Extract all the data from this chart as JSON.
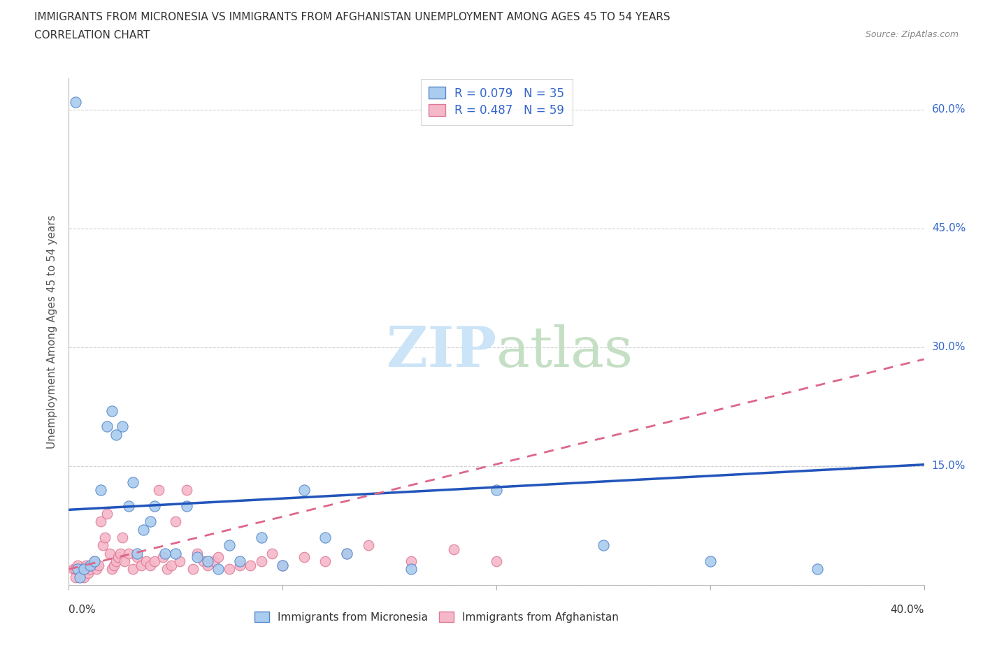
{
  "title_line1": "IMMIGRANTS FROM MICRONESIA VS IMMIGRANTS FROM AFGHANISTAN UNEMPLOYMENT AMONG AGES 45 TO 54 YEARS",
  "title_line2": "CORRELATION CHART",
  "source_text": "Source: ZipAtlas.com",
  "ylabel": "Unemployment Among Ages 45 to 54 years",
  "xlim": [
    0.0,
    0.4
  ],
  "ylim": [
    0.0,
    0.64
  ],
  "yticks": [
    0.0,
    0.15,
    0.3,
    0.45,
    0.6
  ],
  "ytick_labels": [
    "",
    "15.0%",
    "30.0%",
    "45.0%",
    "60.0%"
  ],
  "grid_color": "#cccccc",
  "background_color": "#ffffff",
  "micronesia_color": "#aaccee",
  "micronesia_edge_color": "#5588cc",
  "afghanistan_color": "#f5b8c8",
  "afghanistan_edge_color": "#dd7799",
  "micronesia_R": 0.079,
  "micronesia_N": 35,
  "afghanistan_R": 0.487,
  "afghanistan_N": 59,
  "trend_micronesia_color": "#2255bb",
  "trend_afghanistan_color": "#dd6688",
  "micronesia_trend_start_y": 0.095,
  "micronesia_trend_end_y": 0.152,
  "afghanistan_trend_start_y": 0.02,
  "afghanistan_trend_end_y": 0.285,
  "micronesia_x": [
    0.003,
    0.004,
    0.005,
    0.007,
    0.01,
    0.012,
    0.015,
    0.018,
    0.02,
    0.022,
    0.025,
    0.028,
    0.03,
    0.032,
    0.035,
    0.038,
    0.04,
    0.045,
    0.05,
    0.055,
    0.06,
    0.065,
    0.07,
    0.075,
    0.08,
    0.09,
    0.1,
    0.11,
    0.12,
    0.13,
    0.16,
    0.2,
    0.25,
    0.3,
    0.35
  ],
  "micronesia_y": [
    0.61,
    0.02,
    0.01,
    0.02,
    0.025,
    0.03,
    0.12,
    0.2,
    0.22,
    0.19,
    0.2,
    0.1,
    0.13,
    0.04,
    0.07,
    0.08,
    0.1,
    0.04,
    0.04,
    0.1,
    0.035,
    0.03,
    0.02,
    0.05,
    0.03,
    0.06,
    0.025,
    0.12,
    0.06,
    0.04,
    0.02,
    0.12,
    0.05,
    0.03,
    0.02
  ],
  "afghanistan_x": [
    0.002,
    0.003,
    0.003,
    0.004,
    0.005,
    0.006,
    0.007,
    0.008,
    0.009,
    0.01,
    0.011,
    0.012,
    0.013,
    0.014,
    0.015,
    0.016,
    0.017,
    0.018,
    0.019,
    0.02,
    0.021,
    0.022,
    0.023,
    0.024,
    0.025,
    0.026,
    0.028,
    0.03,
    0.032,
    0.034,
    0.036,
    0.038,
    0.04,
    0.042,
    0.044,
    0.046,
    0.048,
    0.05,
    0.052,
    0.055,
    0.058,
    0.06,
    0.063,
    0.065,
    0.068,
    0.07,
    0.075,
    0.08,
    0.085,
    0.09,
    0.095,
    0.1,
    0.11,
    0.12,
    0.13,
    0.14,
    0.16,
    0.18,
    0.2
  ],
  "afghanistan_y": [
    0.02,
    0.01,
    0.02,
    0.025,
    0.015,
    0.02,
    0.01,
    0.025,
    0.015,
    0.02,
    0.025,
    0.03,
    0.02,
    0.025,
    0.08,
    0.05,
    0.06,
    0.09,
    0.04,
    0.02,
    0.025,
    0.03,
    0.035,
    0.04,
    0.06,
    0.03,
    0.04,
    0.02,
    0.035,
    0.025,
    0.03,
    0.025,
    0.03,
    0.12,
    0.035,
    0.02,
    0.025,
    0.08,
    0.03,
    0.12,
    0.02,
    0.04,
    0.03,
    0.025,
    0.03,
    0.035,
    0.02,
    0.025,
    0.025,
    0.03,
    0.04,
    0.025,
    0.035,
    0.03,
    0.04,
    0.05,
    0.03,
    0.045,
    0.03
  ]
}
